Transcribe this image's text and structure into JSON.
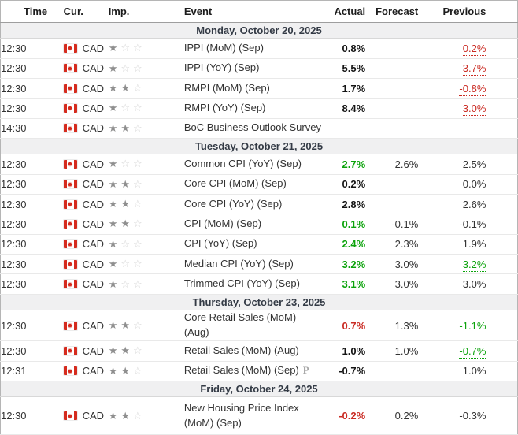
{
  "calendar": {
    "headers": {
      "time": "Time",
      "cur": "Cur.",
      "imp": "Imp.",
      "event": "Event",
      "actual": "Actual",
      "forecast": "Forecast",
      "previous": "Previous"
    },
    "currency_code": "CAD",
    "flag_icon": "canada-flag",
    "importance_scale": 3,
    "preliminary_marker": "P",
    "sections": [
      {
        "date": "Monday, October 20, 2025",
        "rows": [
          {
            "time": "12:30",
            "currency": "CAD",
            "importance": 1,
            "event": "IPPI (MoM) (Sep)",
            "preliminary": false,
            "actual": "0.8%",
            "actual_color": "black",
            "forecast": "",
            "previous": "0.2%",
            "previous_color": "red",
            "previous_revised": true
          },
          {
            "time": "12:30",
            "currency": "CAD",
            "importance": 1,
            "event": "IPPI (YoY) (Sep)",
            "preliminary": false,
            "actual": "5.5%",
            "actual_color": "black",
            "forecast": "",
            "previous": "3.7%",
            "previous_color": "red",
            "previous_revised": true
          },
          {
            "time": "12:30",
            "currency": "CAD",
            "importance": 2,
            "event": "RMPI (MoM) (Sep)",
            "preliminary": false,
            "actual": "1.7%",
            "actual_color": "black",
            "forecast": "",
            "previous": "-0.8%",
            "previous_color": "red",
            "previous_revised": true
          },
          {
            "time": "12:30",
            "currency": "CAD",
            "importance": 1,
            "event": "RMPI (YoY) (Sep)",
            "preliminary": false,
            "actual": "8.4%",
            "actual_color": "black",
            "forecast": "",
            "previous": "3.0%",
            "previous_color": "red",
            "previous_revised": true
          },
          {
            "time": "14:30",
            "currency": "CAD",
            "importance": 2,
            "event": "BoC Business Outlook Survey",
            "preliminary": false,
            "actual": "",
            "actual_color": "black",
            "forecast": "",
            "previous": "",
            "previous_color": "black",
            "previous_revised": false
          }
        ]
      },
      {
        "date": "Tuesday, October 21, 2025",
        "rows": [
          {
            "time": "12:30",
            "currency": "CAD",
            "importance": 1,
            "event": "Common CPI (YoY) (Sep)",
            "preliminary": false,
            "actual": "2.7%",
            "actual_color": "green",
            "forecast": "2.6%",
            "previous": "2.5%",
            "previous_color": "black",
            "previous_revised": false
          },
          {
            "time": "12:30",
            "currency": "CAD",
            "importance": 2,
            "event": "Core CPI (MoM) (Sep)",
            "preliminary": false,
            "actual": "0.2%",
            "actual_color": "black",
            "forecast": "",
            "previous": "0.0%",
            "previous_color": "black",
            "previous_revised": false
          },
          {
            "time": "12:30",
            "currency": "CAD",
            "importance": 2,
            "event": "Core CPI (YoY) (Sep)",
            "preliminary": false,
            "actual": "2.8%",
            "actual_color": "black",
            "forecast": "",
            "previous": "2.6%",
            "previous_color": "black",
            "previous_revised": false
          },
          {
            "time": "12:30",
            "currency": "CAD",
            "importance": 2,
            "event": "CPI (MoM) (Sep)",
            "preliminary": false,
            "actual": "0.1%",
            "actual_color": "green",
            "forecast": "-0.1%",
            "previous": "-0.1%",
            "previous_color": "black",
            "previous_revised": false
          },
          {
            "time": "12:30",
            "currency": "CAD",
            "importance": 1,
            "event": "CPI (YoY) (Sep)",
            "preliminary": false,
            "actual": "2.4%",
            "actual_color": "green",
            "forecast": "2.3%",
            "previous": "1.9%",
            "previous_color": "black",
            "previous_revised": false
          },
          {
            "time": "12:30",
            "currency": "CAD",
            "importance": 1,
            "event": "Median CPI (YoY) (Sep)",
            "preliminary": false,
            "actual": "3.2%",
            "actual_color": "green",
            "forecast": "3.0%",
            "previous": "3.2%",
            "previous_color": "green",
            "previous_revised": true
          },
          {
            "time": "12:30",
            "currency": "CAD",
            "importance": 1,
            "event": "Trimmed CPI (YoY) (Sep)",
            "preliminary": false,
            "actual": "3.1%",
            "actual_color": "green",
            "forecast": "3.0%",
            "previous": "3.0%",
            "previous_color": "black",
            "previous_revised": false
          }
        ]
      },
      {
        "date": "Thursday, October 23, 2025",
        "rows": [
          {
            "time": "12:30",
            "currency": "CAD",
            "importance": 2,
            "event": "Core Retail Sales (MoM) (Aug)",
            "preliminary": false,
            "actual": "0.7%",
            "actual_color": "red",
            "forecast": "1.3%",
            "previous": "-1.1%",
            "previous_color": "green",
            "previous_revised": true
          },
          {
            "time": "12:30",
            "currency": "CAD",
            "importance": 2,
            "event": "Retail Sales (MoM) (Aug)",
            "preliminary": false,
            "actual": "1.0%",
            "actual_color": "black",
            "forecast": "1.0%",
            "previous": "-0.7%",
            "previous_color": "green",
            "previous_revised": true
          },
          {
            "time": "12:31",
            "currency": "CAD",
            "importance": 2,
            "event": "Retail Sales (MoM) (Sep)",
            "preliminary": true,
            "actual": "-0.7%",
            "actual_color": "black",
            "forecast": "",
            "previous": "1.0%",
            "previous_color": "black",
            "previous_revised": false
          }
        ]
      },
      {
        "date": "Friday, October 24, 2025",
        "rows": [
          {
            "time": "12:30",
            "currency": "CAD",
            "importance": 2,
            "event": "New Housing Price Index (MoM) (Sep)",
            "preliminary": false,
            "actual": "-0.2%",
            "actual_color": "red",
            "forecast": "0.2%",
            "previous": "-0.3%",
            "previous_color": "black",
            "previous_revised": false,
            "tall": true
          }
        ]
      }
    ]
  },
  "colors": {
    "positive_green": "#0ba30b",
    "negative_red": "#ca2b23",
    "flag_red": "#d52b1e",
    "star_filled": "#8f8f8f",
    "star_empty": "#d4d4d4",
    "date_band_bg": "#f0f0f1"
  }
}
